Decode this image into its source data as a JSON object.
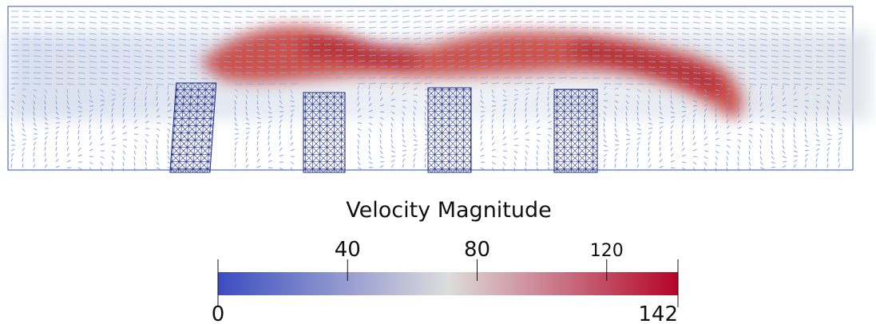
{
  "title": "Velocity Magnitude",
  "colorbar": {
    "range": [
      0,
      142
    ],
    "ticks": [
      40,
      80,
      120
    ],
    "colors": [
      "#3b4cc0",
      "#dddddd",
      "#b40426"
    ]
  }
}
